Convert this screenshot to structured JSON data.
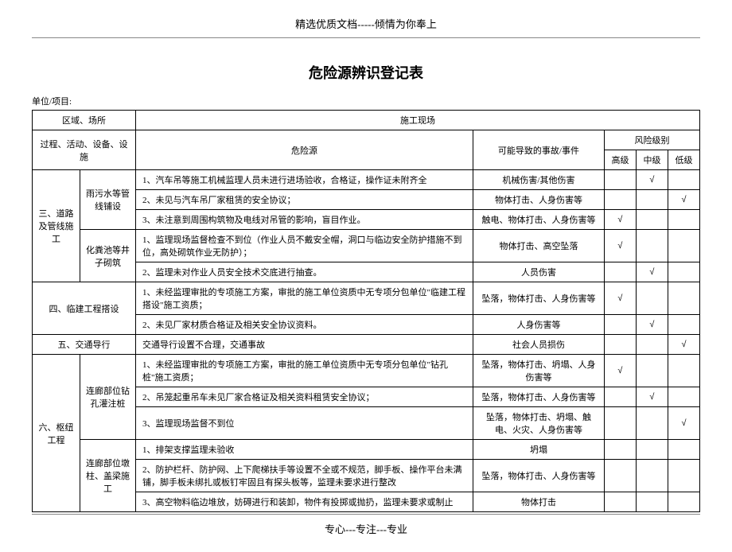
{
  "header": "精选优质文档-----倾情为你奉上",
  "title": "危险源辨识登记表",
  "unit_label": "单位/项目:",
  "footer": "专心---专注---专业",
  "check_mark": "√",
  "columns": {
    "area": "区域、场所",
    "process": "过程、活动、设备、设施",
    "site": "施工现场",
    "hazard": "危险源",
    "accident": "可能导致的事故/事件",
    "risk_level": "风险级别",
    "high": "高级",
    "mid": "中级",
    "low": "低级"
  },
  "sections": {
    "s3": {
      "name": "三、道路及管线施工",
      "sub1": "雨污水等管线铺设",
      "sub2": "化粪池等井子砌筑",
      "rows": [
        {
          "hazard": "1、汽车吊等施工机械监理人员未进行进场验收，合格证，操作证未附齐全",
          "accident": "机械伤害/其他伤害",
          "high": "",
          "mid": "√",
          "low": ""
        },
        {
          "hazard": "2、未见与汽车吊厂家租赁的安全协议；",
          "accident": "物体打击、人身伤害等",
          "high": "",
          "mid": "",
          "low": "√"
        },
        {
          "hazard": "3、未注意到周围构筑物及电线对吊管的影响，盲目作业。",
          "accident": "触电、物体打击、人身伤害等",
          "high": "√",
          "mid": "",
          "low": ""
        },
        {
          "hazard": "1、监理现场监督检查不到位（作业人员不戴安全帽，洞口与临边安全防护措施不到位，高处砌筑作业无防护）；",
          "accident": "物体打击、高空坠落",
          "high": "√",
          "mid": "",
          "low": ""
        },
        {
          "hazard": "2、监理未对作业人员安全技术交底进行抽查。",
          "accident": "人员伤害",
          "high": "",
          "mid": "√",
          "low": ""
        }
      ]
    },
    "s4": {
      "name": "四、临建工程搭设",
      "rows": [
        {
          "hazard": "1、未经监理审批的专项施工方案，审批的施工单位资质中无专项分包单位\"临建工程搭设\"施工资质；",
          "accident": "坠落，物体打击、人身伤害等",
          "high": "√",
          "mid": "",
          "low": ""
        },
        {
          "hazard": "2、未见厂家材质合格证及相关安全协议资料。",
          "accident": "人身伤害等",
          "high": "",
          "mid": "√",
          "low": ""
        }
      ]
    },
    "s5": {
      "name": "五、交通导行",
      "rows": [
        {
          "hazard": "交通导行设置不合理，交通事故",
          "accident": "社会人员损伤",
          "high": "",
          "mid": "",
          "low": "√"
        }
      ]
    },
    "s6": {
      "name": "六、枢纽工程",
      "sub1": "连廊部位钻孔灌注桩",
      "sub2": "连廊部位墩柱、盖梁施工",
      "rows": [
        {
          "hazard": "1、未经监理审批的专项施工方案，审批的施工单位资质中无专项分包单位\"钻孔桩\"施工资质；",
          "accident": "坠落，物体打击、坍塌、人身伤害等",
          "high": "√",
          "mid": "",
          "low": ""
        },
        {
          "hazard": "2、吊笼起重吊车未见厂家合格证及相关资料租赁安全协议；",
          "accident": "坠落，物体打击、人身伤害等",
          "high": "",
          "mid": "√",
          "low": ""
        },
        {
          "hazard": "3、监理现场监督不到位",
          "accident": "坠落，物体打击、坍塌、触电、火灾、人身伤害等",
          "high": "",
          "mid": "",
          "low": "√"
        },
        {
          "hazard": "1、排架支撑监理未验收",
          "accident": "坍塌",
          "high": "",
          "mid": "",
          "low": ""
        },
        {
          "hazard": "2、防护栏杆、防护网、上下爬梯扶手等设置不全或不规范，脚手板、操作平台未满铺，脚手板未绑扎或板钉牢固且有探头板等，监理未要求进行整改",
          "accident": "坠落，物体打击、人身伤害等",
          "high": "",
          "mid": "",
          "low": ""
        },
        {
          "hazard": "3、高空物料临边堆放，妨碍进行和装卸，物件有投掷或抛扔，监理未要求或制止",
          "accident": "物体打击",
          "high": "",
          "mid": "",
          "low": ""
        }
      ]
    }
  }
}
